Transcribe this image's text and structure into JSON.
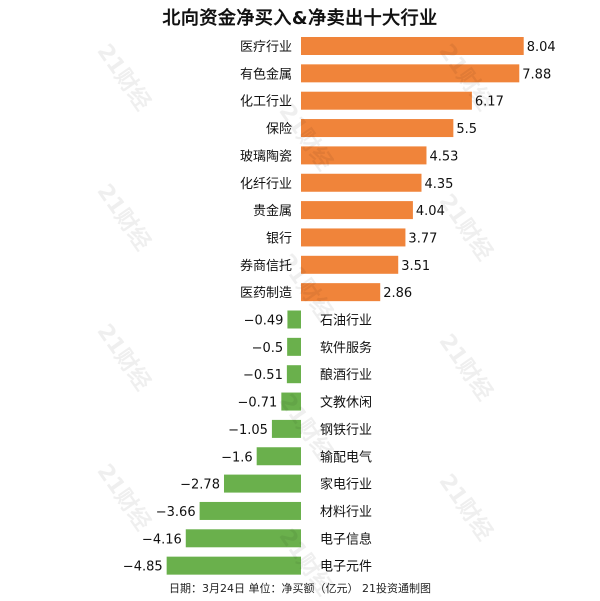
{
  "chart_data": {
    "type": "bar",
    "orientation": "horizontal",
    "title": "北向资金净买入&净卖出十大行业",
    "categories": [
      "医疗行业",
      "有色金属",
      "化工行业",
      "保险",
      "玻璃陶瓷",
      "化纤行业",
      "贵金属",
      "银行",
      "券商信托",
      "医药制造",
      "石油行业",
      "软件服务",
      "酿酒行业",
      "文教休闲",
      "钢铁行业",
      "输配电气",
      "家电行业",
      "材料行业",
      "电子信息",
      "电子元件"
    ],
    "values": [
      8.04,
      7.88,
      6.17,
      5.5,
      4.53,
      4.35,
      4.04,
      3.77,
      3.51,
      2.86,
      -0.49,
      -0.5,
      -0.51,
      -0.71,
      -1.05,
      -1.6,
      -2.78,
      -3.66,
      -4.16,
      -4.85
    ],
    "value_labels": [
      "8.04",
      "7.88",
      "6.17",
      "5.5",
      "4.53",
      "4.35",
      "4.04",
      "3.77",
      "3.51",
      "2.86",
      "−0.49",
      "−0.5",
      "−0.51",
      "−0.71",
      "−1.05",
      "−1.6",
      "−2.78",
      "−3.66",
      "−4.16",
      "−4.85"
    ],
    "colors": {
      "positive": "#F0843A",
      "negative": "#6AB04C"
    },
    "footer": "日期：3月24日 单位：净买额（亿元） 21投资通制图",
    "watermark": "21财经"
  }
}
